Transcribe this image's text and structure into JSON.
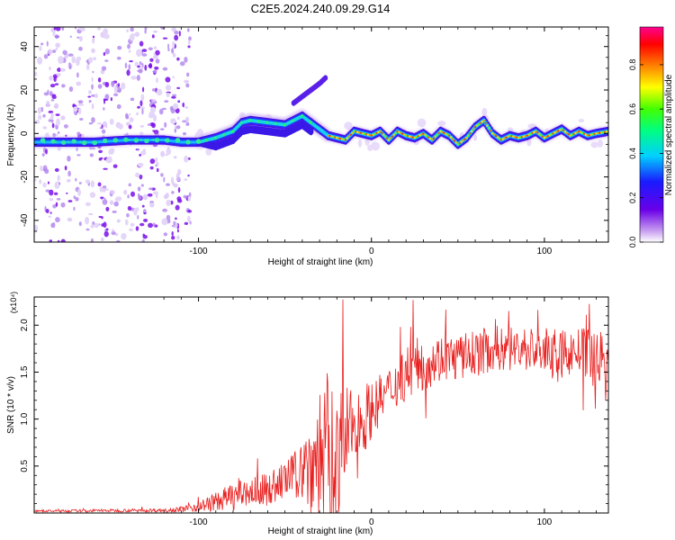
{
  "title": "C2E5.2024.240.09.29.G14",
  "chart_data": [
    {
      "type": "heatmap",
      "xlabel": "Height of straight line (km)",
      "ylabel": "Frequency (Hz)",
      "xlim": [
        -195,
        137
      ],
      "ylim": [
        -50,
        49
      ],
      "xticks": [
        -100,
        0,
        100
      ],
      "yticks": [
        -40,
        -20,
        0,
        20,
        40
      ],
      "colorbar": {
        "label": "Normalized spectral amplitude",
        "range": [
          0,
          0.97
        ],
        "ticks": [
          "0.0",
          "0.2",
          "0.4",
          "0.6",
          "0.8"
        ],
        "colormap": [
          "#ffffff",
          "#c9a2f0",
          "#6a00e8",
          "#1a1aff",
          "#00d0ff",
          "#00ff80",
          "#44ff00",
          "#ffff00",
          "#ff8000",
          "#ff0000",
          "#ff0090"
        ]
      },
      "main_trace": [
        [
          -195,
          -4
        ],
        [
          -180,
          -4
        ],
        [
          -160,
          -4
        ],
        [
          -140,
          -3
        ],
        [
          -120,
          -3
        ],
        [
          -110,
          -4
        ],
        [
          -100,
          -4
        ],
        [
          -90,
          -2
        ],
        [
          -80,
          1
        ],
        [
          -75,
          5
        ],
        [
          -70,
          6
        ],
        [
          -60,
          5
        ],
        [
          -50,
          4
        ],
        [
          -45,
          6
        ],
        [
          -40,
          8
        ],
        [
          -35,
          5
        ],
        [
          -30,
          2
        ],
        [
          -25,
          -1
        ],
        [
          -20,
          -2
        ],
        [
          -15,
          -3
        ],
        [
          -10,
          1
        ],
        [
          -5,
          0
        ],
        [
          0,
          -1
        ],
        [
          5,
          1
        ],
        [
          10,
          -3
        ],
        [
          15,
          1
        ],
        [
          20,
          -1
        ],
        [
          25,
          -2
        ],
        [
          30,
          0
        ],
        [
          35,
          -3
        ],
        [
          40,
          1
        ],
        [
          45,
          -1
        ],
        [
          50,
          -5
        ],
        [
          55,
          -2
        ],
        [
          60,
          3
        ],
        [
          65,
          6
        ],
        [
          70,
          0
        ],
        [
          75,
          -3
        ],
        [
          80,
          -1
        ],
        [
          85,
          -2
        ],
        [
          90,
          -1
        ],
        [
          95,
          1
        ],
        [
          100,
          -2
        ],
        [
          105,
          0
        ],
        [
          110,
          2
        ],
        [
          115,
          -1
        ],
        [
          120,
          1
        ],
        [
          125,
          -1
        ],
        [
          130,
          0
        ],
        [
          137,
          1
        ]
      ],
      "branch_trace": [
        [
          -45,
          14
        ],
        [
          -40,
          17
        ],
        [
          -35,
          20
        ],
        [
          -30,
          23
        ],
        [
          -26,
          26
        ]
      ]
    },
    {
      "type": "line",
      "xlabel": "Height of straight line (km)",
      "ylabel": "SNR (10 * v/v)",
      "scale_label": "(x10⁴)",
      "color": "#e8201f",
      "xlim": [
        -195,
        137
      ],
      "ylim": [
        0,
        2.3
      ],
      "xticks": [
        -100,
        0,
        100
      ],
      "yticks": [
        0.5,
        1.0,
        1.5,
        2.0
      ],
      "envelope": {
        "x": [
          -195,
          -120,
          -110,
          -100,
          -90,
          -80,
          -70,
          -60,
          -50,
          -40,
          -35,
          -30,
          -25,
          -20,
          -15,
          -10,
          -5,
          0,
          10,
          20,
          30,
          40,
          50,
          60,
          70,
          80,
          90,
          100,
          110,
          120,
          130,
          137
        ],
        "mid": [
          0.02,
          0.03,
          0.04,
          0.07,
          0.12,
          0.18,
          0.22,
          0.25,
          0.35,
          0.45,
          0.55,
          0.6,
          0.6,
          0.5,
          0.8,
          0.95,
          1.0,
          1.1,
          1.3,
          1.5,
          1.6,
          1.65,
          1.65,
          1.7,
          1.75,
          1.75,
          1.75,
          1.72,
          1.7,
          1.72,
          1.68,
          1.6
        ],
        "spread": [
          0.01,
          0.02,
          0.03,
          0.06,
          0.1,
          0.15,
          0.15,
          0.18,
          0.2,
          0.3,
          0.6,
          0.8,
          0.9,
          0.8,
          0.6,
          0.3,
          0.4,
          0.3,
          0.25,
          0.3,
          0.3,
          0.25,
          0.25,
          0.25,
          0.25,
          0.25,
          0.25,
          0.25,
          0.25,
          0.25,
          0.3,
          0.3
        ]
      }
    }
  ]
}
